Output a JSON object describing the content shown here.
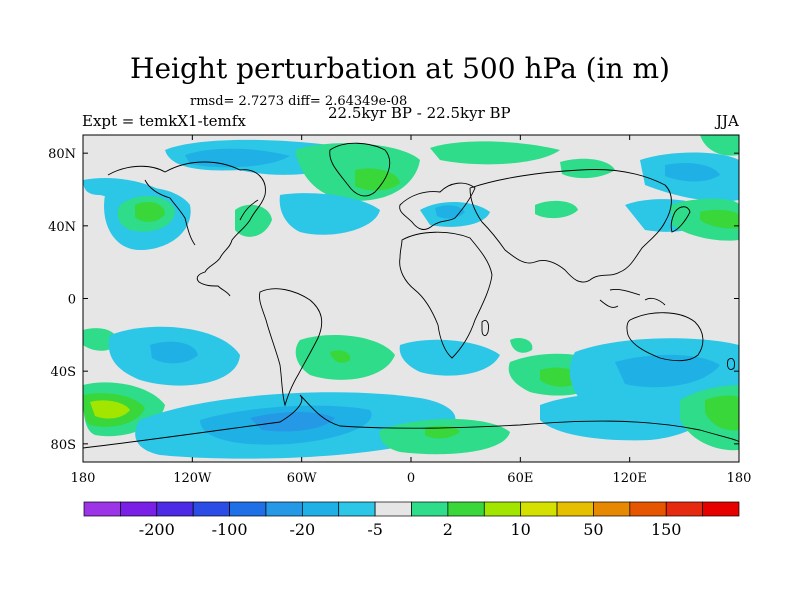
{
  "title": "Height perturbation at 500 hPa (in m)",
  "stats": "rmsd= 2.7273 diff= 2.64349e-08",
  "left_label": "Expt = temkX1-temfx",
  "center_label": "22.5kyr BP - 22.5kyr BP",
  "right_label": "JJA",
  "colors": {
    "background": "#e6e6e6",
    "palette": [
      "#9c35e6",
      "#7a1fe6",
      "#4d2be6",
      "#2b4de6",
      "#1f6fe6",
      "#2599e6",
      "#1fb1e6",
      "#2cc6e6",
      "#e6e6e6",
      "#2edc8a",
      "#3ad73a",
      "#a2e600",
      "#d4e000",
      "#e6c000",
      "#e68800",
      "#e65500",
      "#e62a10",
      "#e60000"
    ],
    "coastline": "#000000"
  },
  "chart_data": {
    "type": "contour-map",
    "title": "Height perturbation at 500 hPa (in m)",
    "variable": "500 hPa geopotential height perturbation",
    "units": "m",
    "season": "JJA",
    "xaxis": {
      "range": [
        -180,
        180
      ],
      "tick_labels": [
        "180",
        "120W",
        "60W",
        "0",
        "60E",
        "120E",
        "180"
      ]
    },
    "yaxis": {
      "range": [
        -90,
        90
      ],
      "tick_labels": [
        "80N",
        "40N",
        "0",
        "40S",
        "80S"
      ]
    },
    "colorbar": {
      "labels": [
        "-200",
        "-100",
        "-20",
        "-5",
        "2",
        "10",
        "50",
        "150"
      ],
      "n_bins": 18
    }
  }
}
